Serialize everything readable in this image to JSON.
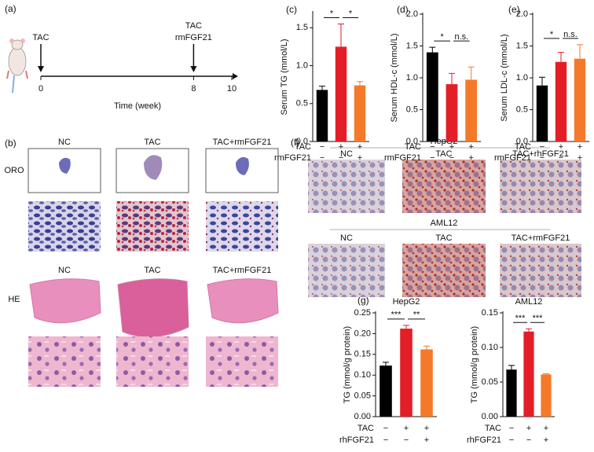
{
  "panel_labels": [
    "(a)",
    "(b)",
    "(c)",
    "(d)",
    "(e)",
    "(f)",
    "(g)"
  ],
  "timeline": {
    "xlim": [
      0,
      10
    ],
    "xticks": [
      0,
      8,
      10
    ],
    "xlabel": "Time (week)",
    "events": [
      {
        "week": 0,
        "labels": [
          "TAC"
        ]
      },
      {
        "week": 8,
        "labels": [
          "TAC",
          "rmFGF21"
        ]
      }
    ]
  },
  "panel_b": {
    "oro": {
      "label": "ORO",
      "columns": [
        "NC",
        "TAC",
        "TAC+rmFGF21"
      ]
    },
    "he": {
      "label": "HE",
      "columns": [
        "NC",
        "TAC",
        "TAC+rmFGF21"
      ]
    }
  },
  "panel_f": {
    "hepg2": {
      "title": "HepG2",
      "columns": [
        "NC",
        "TAC",
        "TAC+rhFGF21"
      ]
    },
    "aml12": {
      "title": "AML12",
      "columns": [
        "NC",
        "TAC",
        "TAC+rmFGF21"
      ]
    }
  },
  "chart_data": [
    {
      "type": "bar",
      "ylabel": "Serum TG (mmol/L)",
      "ylim": [
        0,
        1.7
      ],
      "yticks": [
        {
          "value": 0,
          "label": "0.0"
        },
        0.5,
        {
          "value": 1,
          "label": "1.0"
        },
        1.5
      ],
      "values": [
        0.68,
        1.25,
        0.74
      ],
      "errors": [
        0.05,
        0.3,
        0.05
      ],
      "colors": [
        "#000000",
        "#e41e26",
        "#f5792a"
      ],
      "treatments": [
        {
          "name": "TAC",
          "signs": [
            "−",
            "+",
            "+"
          ]
        },
        {
          "name": "rmFGF21",
          "signs": [
            "−",
            "−",
            "+"
          ]
        }
      ],
      "annotations": [
        "*",
        "*"
      ]
    },
    {
      "type": "bar",
      "ylabel": "Serum HDL-c (mmol/L)",
      "ylim": [
        0,
        2
      ],
      "yticks": [
        {
          "value": 0,
          "label": "0.0"
        },
        0.5,
        {
          "value": 1,
          "label": "1.0"
        },
        1.5,
        {
          "value": 2,
          "label": "2.0"
        }
      ],
      "values": [
        1.4,
        0.9,
        0.97
      ],
      "errors": [
        0.08,
        0.17,
        0.2
      ],
      "colors": [
        "#000000",
        "#e41e26",
        "#f5792a"
      ],
      "treatments": [
        {
          "name": "TAC",
          "signs": [
            "−",
            "+",
            "+"
          ]
        },
        {
          "name": "rmFGF21",
          "signs": [
            "−",
            "−",
            "+"
          ]
        }
      ],
      "annotations": [
        "*",
        "n.s."
      ]
    },
    {
      "type": "bar",
      "ylabel": "Serum LDL-c (mmol/L)",
      "ylim": [
        0,
        2
      ],
      "yticks": [
        {
          "value": 0,
          "label": "0.0"
        },
        0.5,
        {
          "value": 1,
          "label": "1.0"
        },
        1.5,
        {
          "value": 2,
          "label": "2.0"
        }
      ],
      "values": [
        0.88,
        1.25,
        1.3
      ],
      "errors": [
        0.13,
        0.15,
        0.22
      ],
      "colors": [
        "#000000",
        "#e41e26",
        "#f5792a"
      ],
      "treatments": [
        {
          "name": "TAC",
          "signs": [
            "−",
            "+",
            "+"
          ]
        },
        {
          "name": "rmFGF21",
          "signs": [
            "−",
            "−",
            "+"
          ]
        }
      ],
      "annotations": [
        "*",
        "n.s."
      ]
    },
    {
      "type": "bar",
      "title": "HepG2",
      "ylabel": "TG (mmol/g protein)",
      "ylim": [
        0,
        0.25
      ],
      "yticks": [
        {
          "value": 0,
          "label": "0.00"
        },
        0.05,
        {
          "value": 0.1,
          "label": "0.10"
        },
        0.15,
        {
          "value": 0.2,
          "label": "0.20"
        },
        0.25
      ],
      "values": [
        0.123,
        0.212,
        0.162
      ],
      "errors": [
        0.008,
        0.008,
        0.008
      ],
      "colors": [
        "#000000",
        "#e41e26",
        "#f5792a"
      ],
      "treatments": [
        {
          "name": "TAC",
          "signs": [
            "−",
            "+",
            "+"
          ]
        },
        {
          "name": "rhFGF21",
          "signs": [
            "−",
            "−",
            "+"
          ]
        }
      ],
      "annotations": [
        "***",
        "**"
      ]
    },
    {
      "type": "bar",
      "title": "AML12",
      "ylabel": "TG (mmol/g protein)",
      "ylim": [
        0,
        0.15
      ],
      "yticks": [
        {
          "value": 0,
          "label": "0.00"
        },
        0.05,
        {
          "value": 0.1,
          "label": "0.10"
        },
        0.15
      ],
      "values": [
        0.068,
        0.123,
        0.061
      ],
      "errors": [
        0.006,
        0.004,
        0.001
      ],
      "colors": [
        "#000000",
        "#e41e26",
        "#f5792a"
      ],
      "treatments": [
        {
          "name": "TAC",
          "signs": [
            "−",
            "+",
            "+"
          ]
        },
        {
          "name": "rhFGF21",
          "signs": [
            "−",
            "−",
            "+"
          ]
        }
      ],
      "annotations": [
        "***",
        "***"
      ]
    }
  ]
}
